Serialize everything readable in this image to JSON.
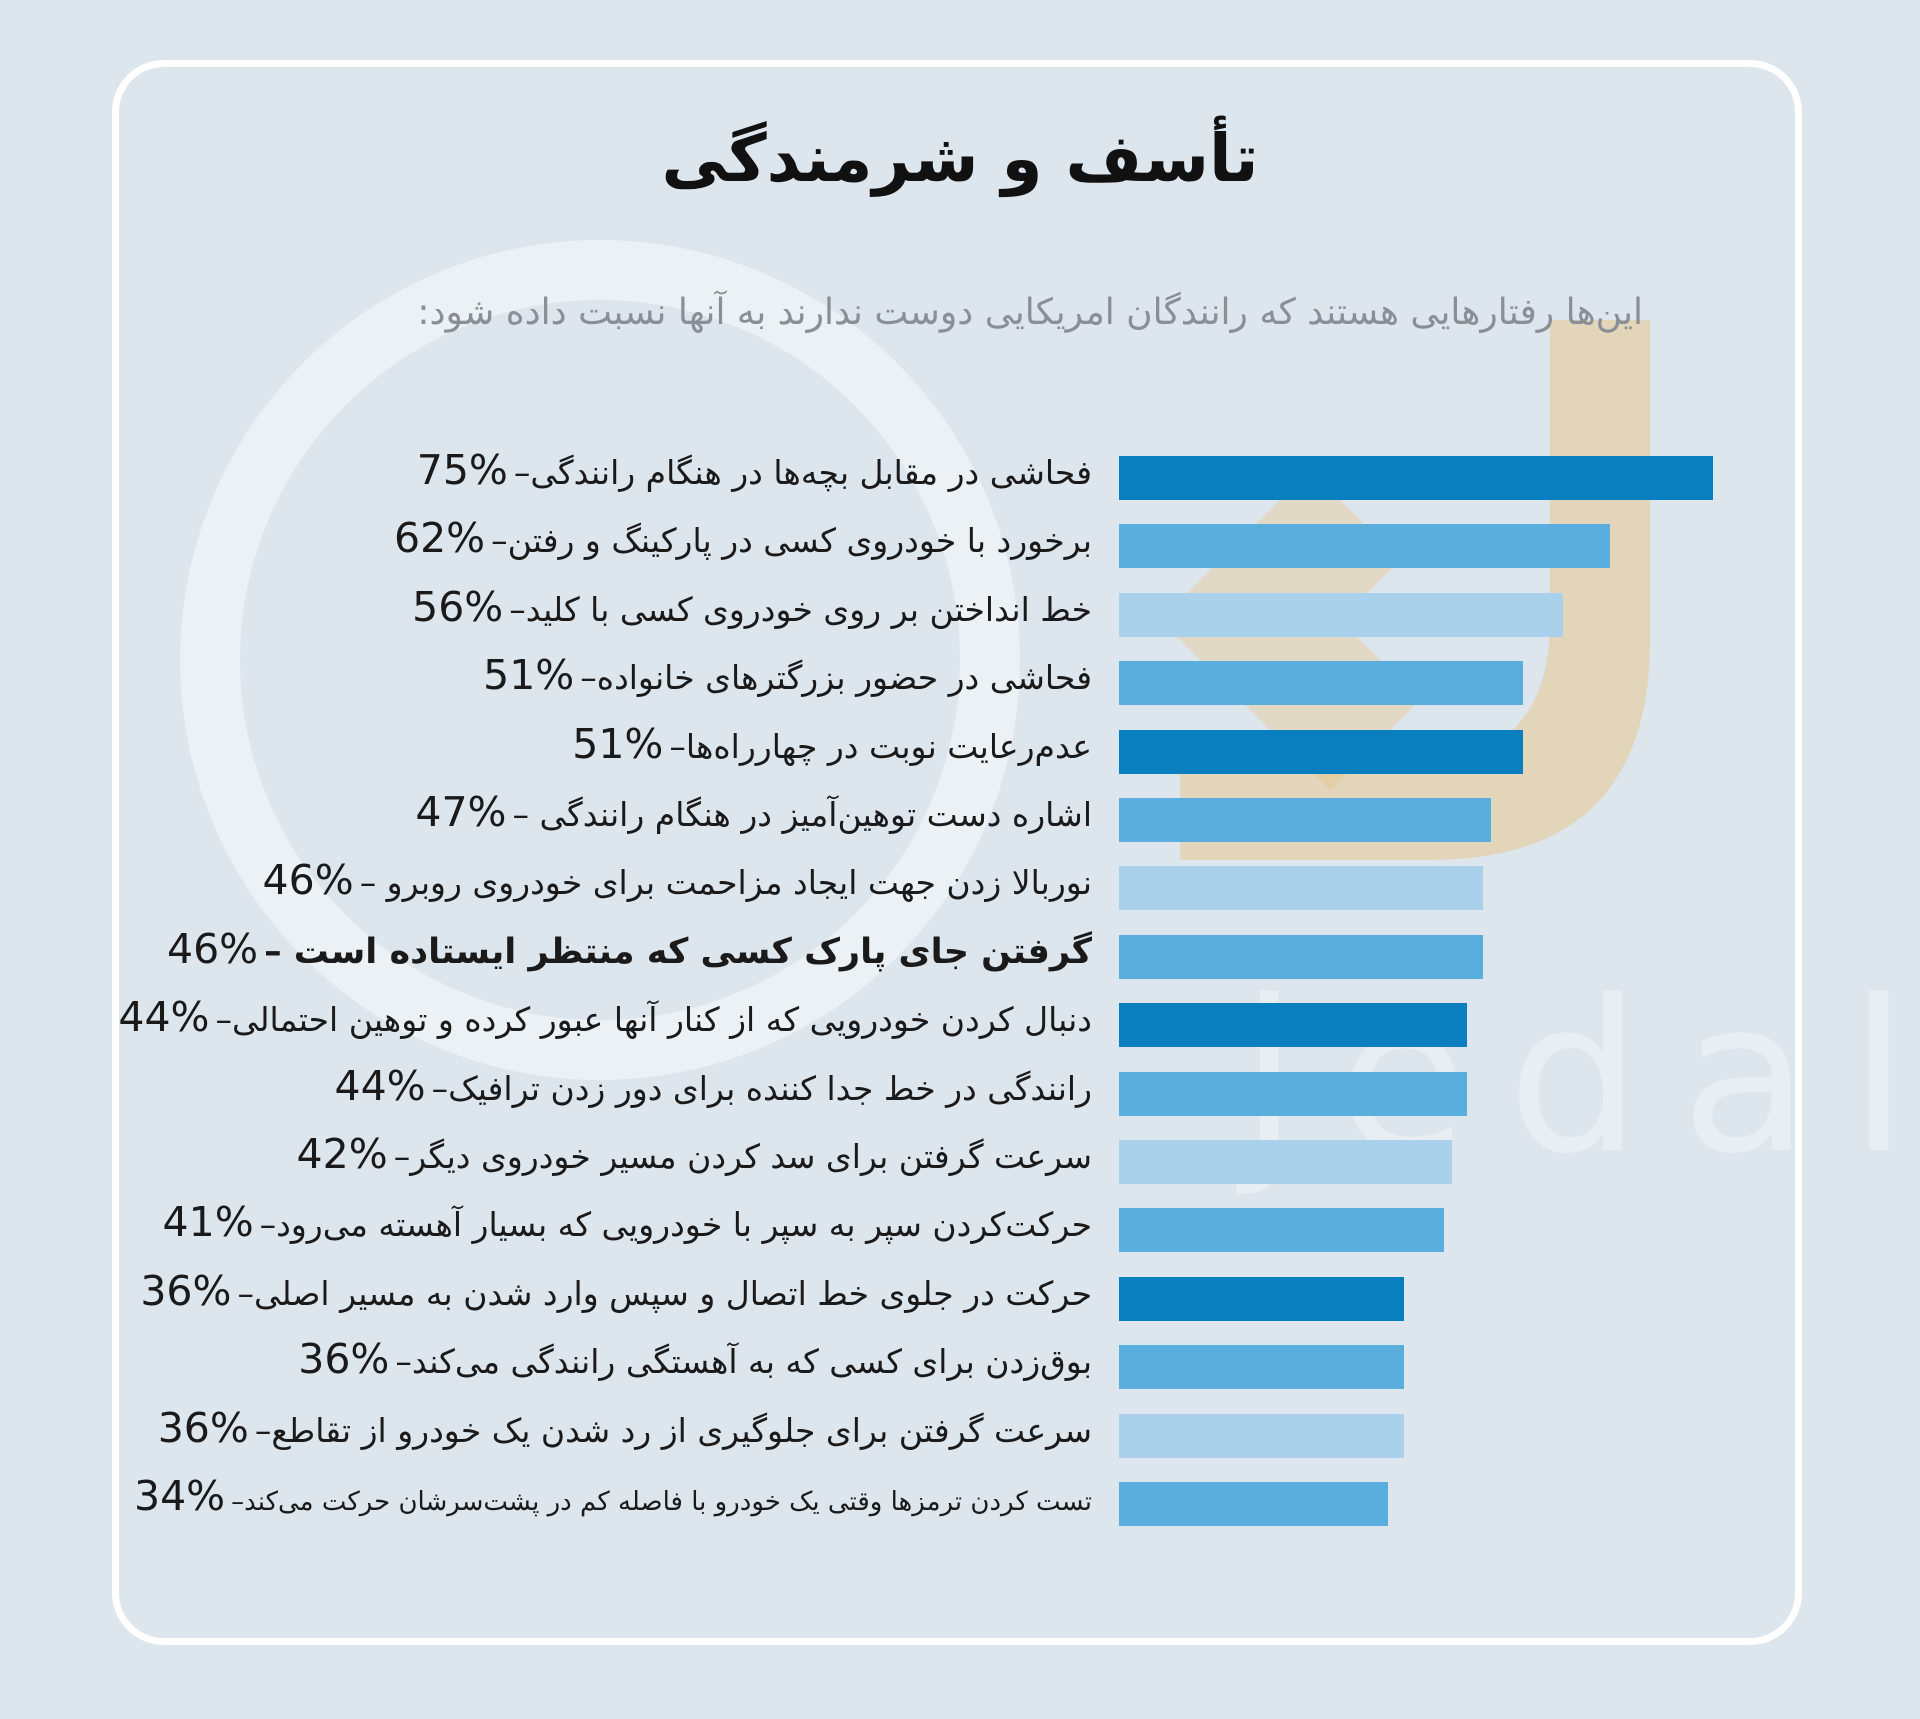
{
  "title": "تأسف و شرمندگی",
  "subtitle": "این‌ها رفتارهایی هستند که رانندگان امریکایی دوست ندارند به آنها نسبت داده شود:",
  "watermark_text": "jedal.ir",
  "chart_data": {
    "type": "bar",
    "orientation": "horizontal",
    "categories": [
      "فحاشی در مقابل بچه‌ها در هنگام رانندگی",
      "برخورد با خودروی کسی در پارکینگ و  رفتن",
      "خط انداختن بر روی خودروی کسی با کلید",
      "فحاشی در حضور بزرگترهای خانواده",
      "عدم‌رعایت نوبت در چهارراه‌ها",
      "اشاره دست توهین‌آمیز در هنگام رانندگی ",
      "نوربالا زدن جهت ایجاد مزاحمت برای خودروی روبرو ",
      "گرفتن جای پارک کسی که منتظر ایستاده است ",
      "دنبال کردن خودرویی که از کنار آنها عبور کرده و توهین احتمالی",
      "رانندگی در خط جدا کننده برای دور زدن ترافیک",
      "سرعت گرفتن برای سد کردن مسیر خودروی دیگر",
      "حرکت‌کردن سپر به سپر با خودرویی که بسیار آهسته می‌رود",
      "حرکت در جلوی خط اتصال  و سپس وارد شدن به مسیر اصلی",
      "بوق‌زدن برای کسی که به آهستگی رانندگی می‌کند",
      "سرعت گرفتن برای جلوگیری از رد شدن یک خودرو از تقاطع",
      "تست کردن ترمزها وقتی یک خودرو با فاصله کم در پشت‌سرشان حرکت می‌کند"
    ],
    "value_labels": [
      "75%",
      "62%",
      "56%",
      "51%",
      "51%",
      "47%",
      "46%",
      "46%",
      "44%",
      "44%",
      "42%",
      "41%",
      "36%",
      "36%",
      "36%",
      "34%"
    ],
    "values": [
      75,
      62,
      56,
      51,
      51,
      47,
      46,
      46,
      44,
      44,
      42,
      41,
      36,
      36,
      36,
      34
    ],
    "bar_colors": [
      "#0a7fc0",
      "#5aaede",
      "#a9d1ec",
      "#5aaede",
      "#0a7fc0",
      "#5aaede",
      "#a9d1ec",
      "#5aaede",
      "#0a7fc0",
      "#5aaede",
      "#a9d1ec",
      "#5aaede",
      "#0a7fc0",
      "#5aaede",
      "#a9d1ec",
      "#5aaede"
    ],
    "xlim": [
      0,
      75
    ]
  }
}
